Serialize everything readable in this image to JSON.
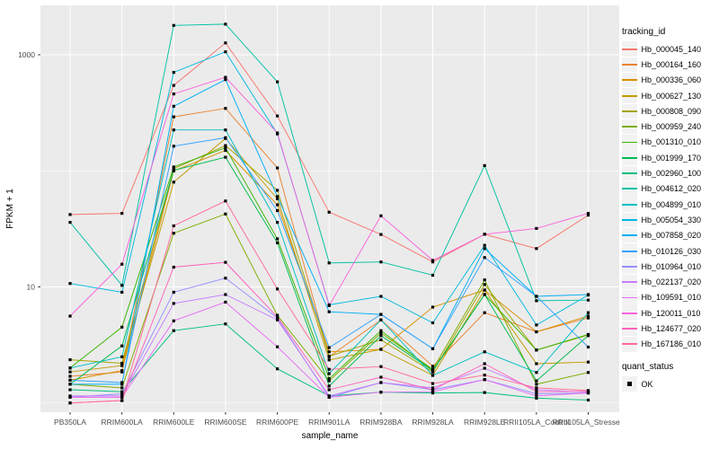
{
  "figure": {
    "background": "#FFFFFF",
    "panel_background": "#EBEBEB",
    "grid_color": "#FFFFFF",
    "tick_color": "#333333",
    "tick_label_color": "#4D4D4D",
    "axis_title_color": "#000000",
    "point_color": "#000000",
    "legend_key_fill": "#F2F2F2"
  },
  "legend": {
    "series_title": "tracking_id",
    "quant_title": "quant_status",
    "quant_label": "OK"
  },
  "chart_data": {
    "type": "line",
    "title": "",
    "xlabel": "sample_name",
    "ylabel": "FPKM + 1",
    "y_scale": "log10",
    "ylim": [
      1,
      2400
    ],
    "grid": "on",
    "legend_position": "right",
    "y_ticks": [
      10,
      1000
    ],
    "y_minor_gridlines": [
      1,
      100
    ],
    "point_shape": "black-square",
    "categories": [
      "PB350LA",
      "RRIM600LA",
      "RRIM600LE",
      "RRIM600SE",
      "RRIM600PE",
      "RRIM901LA",
      "RRIM928BA",
      "RRIM928LA",
      "RRIM928LE",
      "RRII105LA_Control",
      "RRII105LA_Stressed"
    ],
    "series": [
      {
        "name": "Hb_000045_140",
        "color": "#F8766D",
        "values": [
          42,
          43,
          545,
          1265,
          297,
          44,
          28.3,
          16.4,
          28.4,
          21.4,
          41.5
        ]
      },
      {
        "name": "Hb_000164_160",
        "color": "#EA8331",
        "values": [
          1.7,
          1.85,
          292,
          345,
          106,
          2.5,
          5.2,
          2.07,
          6.0,
          4.1,
          5.4
        ]
      },
      {
        "name": "Hb_000336_060",
        "color": "#D89000",
        "values": [
          1.57,
          1.9,
          100,
          150,
          51,
          2.76,
          2.9,
          6.7,
          9.4,
          4.1,
          5.6
        ]
      },
      {
        "name": "Hb_000627_130",
        "color": "#C09B00",
        "values": [
          1.85,
          2.1,
          80,
          190,
          57.5,
          2.35,
          2.9,
          1.73,
          9.4,
          2.18,
          2.25
        ]
      },
      {
        "name": "Hb_000808_090",
        "color": "#A3A500",
        "values": [
          2.36,
          2.2,
          104,
          165,
          68,
          2.53,
          3.5,
          1.85,
          10.5,
          2.86,
          3.85
        ]
      },
      {
        "name": "Hb_000959_240",
        "color": "#7CAE00",
        "values": [
          1.45,
          1.35,
          29,
          42.5,
          5.7,
          1.55,
          4.0,
          1.95,
          11.5,
          1.45,
          1.83
        ]
      },
      {
        "name": "Hb_001310_010",
        "color": "#39B600",
        "values": [
          2.0,
          4.5,
          108,
          158,
          26,
          1.62,
          4.2,
          1.9,
          8.6,
          2.86,
          3.9
        ]
      },
      {
        "name": "Hb_001999_170",
        "color": "#00BB4E",
        "values": [
          1.45,
          3.1,
          101,
          131,
          24,
          1.4,
          3.8,
          1.9,
          8.6,
          1.55,
          3.8
        ]
      },
      {
        "name": "Hb_002960_100",
        "color": "#00BF7D",
        "values": [
          1.3,
          1.25,
          4.2,
          4.8,
          1.97,
          1.15,
          1.24,
          1.22,
          1.23,
          1.1,
          1.06
        ]
      },
      {
        "name": "Hb_004612_020",
        "color": "#00C1A3",
        "values": [
          36,
          10.3,
          1790,
          1835,
          585,
          16.1,
          16.4,
          12.6,
          111,
          7.6,
          7.7
        ]
      },
      {
        "name": "Hb_004899_010",
        "color": "#00BFC4",
        "values": [
          2.0,
          2.5,
          225,
          225,
          36,
          1.79,
          5.2,
          1.73,
          2.76,
          1.83,
          6.0
        ]
      },
      {
        "name": "Hb_005054_330",
        "color": "#00BAE0",
        "values": [
          10.7,
          9.0,
          705,
          1060,
          208,
          7.0,
          8.3,
          4.9,
          22.8,
          4.7,
          8.5
        ]
      },
      {
        "name": "Hb_007858_020",
        "color": "#00B0F6",
        "values": [
          1.45,
          1.45,
          360,
          610,
          60,
          6.1,
          5.8,
          2.93,
          21.4,
          8.3,
          8.6
        ]
      },
      {
        "name": "Hb_010126_030",
        "color": "#35A2FF",
        "values": [
          1.57,
          1.5,
          163,
          193,
          45.5,
          3.0,
          5.8,
          2.93,
          17.9,
          8.3,
          3.03
        ]
      },
      {
        "name": "Hb_010964_010",
        "color": "#9590FF",
        "values": [
          1.12,
          1.2,
          9.0,
          11.9,
          5.4,
          1.12,
          1.5,
          1.3,
          1.59,
          1.2,
          1.22
        ]
      },
      {
        "name": "Hb_022137_020",
        "color": "#C77CFF",
        "values": [
          1.15,
          1.15,
          7.2,
          8.6,
          5.2,
          1.15,
          1.5,
          1.35,
          1.99,
          1.3,
          1.24
        ]
      },
      {
        "name": "Hb_109591_010",
        "color": "#E76BF3",
        "values": [
          1.12,
          1.12,
          5.1,
          7.4,
          3.05,
          1.12,
          1.24,
          1.25,
          1.59,
          1.15,
          1.22
        ]
      },
      {
        "name": "Hb_120011_010",
        "color": "#FA62DB",
        "values": [
          5.6,
          15.7,
          460,
          640,
          212,
          6.9,
          41,
          16.9,
          28.4,
          31.9,
          43
        ]
      },
      {
        "name": "Hb_124677_020",
        "color": "#FF62BC",
        "values": [
          1.0,
          1.05,
          14.8,
          16.3,
          5.5,
          1.3,
          1.67,
          1.3,
          2.18,
          1.25,
          1.26
        ]
      },
      {
        "name": "Hb_167186_010",
        "color": "#FF6A98",
        "values": [
          1.0,
          1.05,
          33.6,
          55,
          9.6,
          1.95,
          2.06,
          1.47,
          1.74,
          1.35,
          1.28
        ]
      }
    ]
  }
}
